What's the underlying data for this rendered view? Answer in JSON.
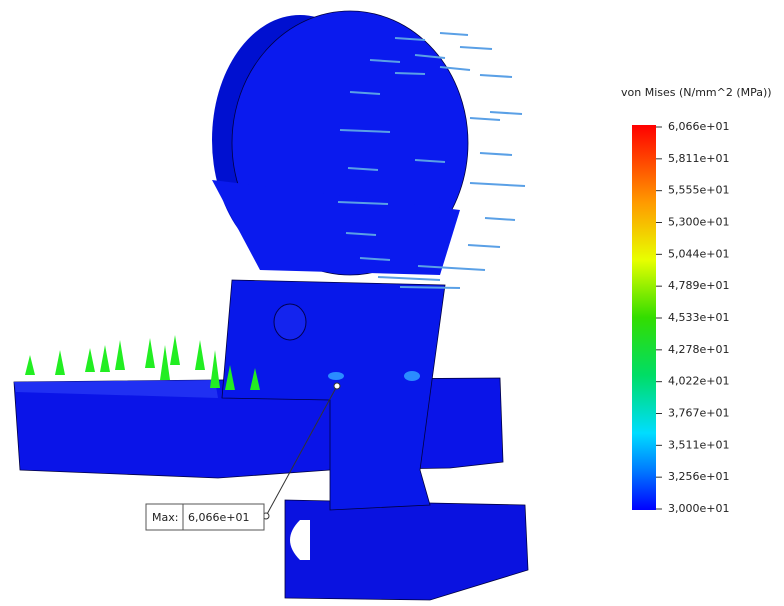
{
  "legend": {
    "title": "von Mises (N/mm^2 (MPa))",
    "labels": [
      "6,066e+01",
      "5,811e+01",
      "5,555e+01",
      "5,300e+01",
      "5,044e+01",
      "4,789e+01",
      "4,533e+01",
      "4,278e+01",
      "4,022e+01",
      "3,767e+01",
      "3,511e+01",
      "3,256e+01",
      "3,000e+01"
    ]
  },
  "max_marker": {
    "label": "Max:",
    "value": "6,066e+01"
  }
}
